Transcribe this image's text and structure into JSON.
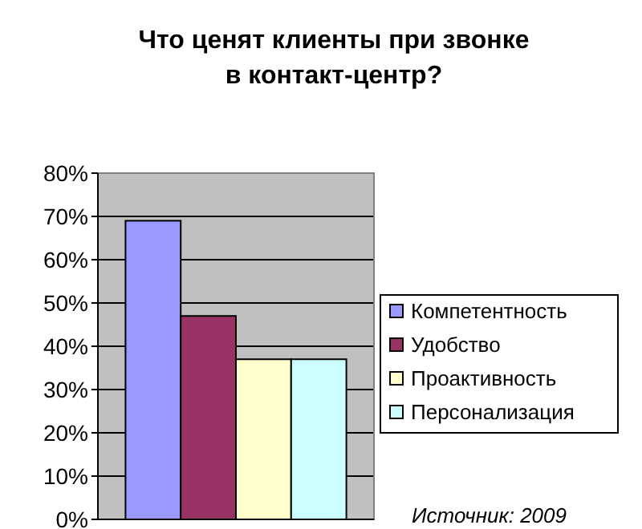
{
  "chart_data": {
    "type": "bar",
    "title": "Что ценят клиенты при звонке\nв контакт-центр?",
    "categories": [
      null
    ],
    "series": [
      {
        "name": "Компетентность",
        "color": "#9999ff",
        "values": [
          69
        ]
      },
      {
        "name": "Удобство",
        "color": "#993366",
        "values": [
          47
        ]
      },
      {
        "name": "Проактивность",
        "color": "#ffffcc",
        "values": [
          37
        ]
      },
      {
        "name": "Персонализация",
        "color": "#ccffff",
        "values": [
          37
        ]
      }
    ],
    "ylim": [
      0,
      80
    ],
    "yticks": [
      {
        "value": 0,
        "label": "0%"
      },
      {
        "value": 10,
        "label": "10%"
      },
      {
        "value": 20,
        "label": "20%"
      },
      {
        "value": 30,
        "label": "30%"
      },
      {
        "value": 40,
        "label": "40%"
      },
      {
        "value": 50,
        "label": "50%"
      },
      {
        "value": 60,
        "label": "60%"
      },
      {
        "value": 70,
        "label": "70%"
      },
      {
        "value": 80,
        "label": "80%"
      }
    ],
    "grid": "y",
    "legend": "right",
    "annotations": [
      "Источник: 2009"
    ]
  }
}
